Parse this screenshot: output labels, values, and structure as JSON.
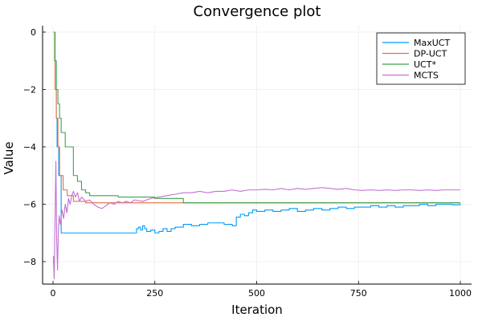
{
  "chart_data": {
    "type": "line",
    "title": "Convergence plot",
    "xlabel": "Iteration",
    "ylabel": "Value",
    "xlim": [
      0,
      1000
    ],
    "ylim": [
      -8.9,
      0.3
    ],
    "xticks": [
      0,
      250,
      500,
      750,
      1000
    ],
    "xtick_labels": [
      "0",
      "250",
      "500",
      "750",
      "1000"
    ],
    "yticks": [
      0,
      -2,
      -4,
      -6,
      -8
    ],
    "ytick_labels": [
      "0",
      "−2",
      "−4",
      "−6",
      "−8"
    ],
    "grid": true,
    "legend_position": "top-right",
    "series": [
      {
        "name": "MaxUCT",
        "color": "#009AFA",
        "step": true,
        "points": [
          [
            1,
            0
          ],
          [
            5,
            -1
          ],
          [
            8,
            -3
          ],
          [
            10,
            -4
          ],
          [
            14,
            -5
          ],
          [
            20,
            -7
          ],
          [
            200,
            -7
          ],
          [
            205,
            -6.85
          ],
          [
            210,
            -6.8
          ],
          [
            215,
            -6.9
          ],
          [
            220,
            -6.75
          ],
          [
            225,
            -6.85
          ],
          [
            230,
            -6.95
          ],
          [
            240,
            -6.9
          ],
          [
            250,
            -7.0
          ],
          [
            260,
            -6.95
          ],
          [
            270,
            -6.85
          ],
          [
            280,
            -6.95
          ],
          [
            290,
            -6.85
          ],
          [
            300,
            -6.8
          ],
          [
            320,
            -6.7
          ],
          [
            340,
            -6.75
          ],
          [
            360,
            -6.7
          ],
          [
            380,
            -6.65
          ],
          [
            400,
            -6.65
          ],
          [
            420,
            -6.7
          ],
          [
            440,
            -6.75
          ],
          [
            450,
            -6.45
          ],
          [
            460,
            -6.35
          ],
          [
            470,
            -6.4
          ],
          [
            480,
            -6.3
          ],
          [
            490,
            -6.2
          ],
          [
            500,
            -6.25
          ],
          [
            520,
            -6.2
          ],
          [
            540,
            -6.25
          ],
          [
            560,
            -6.2
          ],
          [
            580,
            -6.15
          ],
          [
            600,
            -6.25
          ],
          [
            620,
            -6.2
          ],
          [
            640,
            -6.15
          ],
          [
            660,
            -6.2
          ],
          [
            680,
            -6.15
          ],
          [
            700,
            -6.1
          ],
          [
            720,
            -6.15
          ],
          [
            740,
            -6.1
          ],
          [
            760,
            -6.1
          ],
          [
            780,
            -6.05
          ],
          [
            800,
            -6.1
          ],
          [
            820,
            -6.05
          ],
          [
            840,
            -6.1
          ],
          [
            860,
            -6.05
          ],
          [
            880,
            -6.05
          ],
          [
            900,
            -6.0
          ],
          [
            920,
            -6.05
          ],
          [
            940,
            -6.0
          ],
          [
            960,
            -6.0
          ],
          [
            980,
            -6.02
          ],
          [
            1000,
            -5.98
          ]
        ]
      },
      {
        "name": "DP-UCT",
        "color": "#E26F46",
        "step": true,
        "points": [
          [
            1,
            0
          ],
          [
            5,
            -2
          ],
          [
            8,
            -3
          ],
          [
            12,
            -4
          ],
          [
            16,
            -5
          ],
          [
            25,
            -5.5
          ],
          [
            35,
            -5.7
          ],
          [
            50,
            -5.9
          ],
          [
            80,
            -5.95
          ],
          [
            1000,
            -5.95
          ]
        ]
      },
      {
        "name": "UCT*",
        "color": "#3DA44D",
        "step": true,
        "points": [
          [
            1,
            0
          ],
          [
            4,
            -1
          ],
          [
            8,
            -2
          ],
          [
            12,
            -2.5
          ],
          [
            16,
            -3
          ],
          [
            20,
            -3.5
          ],
          [
            30,
            -4
          ],
          [
            50,
            -5
          ],
          [
            60,
            -5.2
          ],
          [
            70,
            -5.5
          ],
          [
            80,
            -5.6
          ],
          [
            90,
            -5.7
          ],
          [
            160,
            -5.75
          ],
          [
            250,
            -5.8
          ],
          [
            320,
            -5.95
          ],
          [
            500,
            -5.95
          ],
          [
            1000,
            -5.95
          ]
        ]
      },
      {
        "name": "MCTS",
        "color": "#C271D2",
        "step": false,
        "points": [
          [
            1,
            -7.8
          ],
          [
            3,
            -8.6
          ],
          [
            5,
            -6.5
          ],
          [
            7,
            -4.5
          ],
          [
            9,
            -7.2
          ],
          [
            11,
            -8.3
          ],
          [
            13,
            -7.0
          ],
          [
            15,
            -6.4
          ],
          [
            18,
            -6.7
          ],
          [
            22,
            -6.2
          ],
          [
            26,
            -6.5
          ],
          [
            30,
            -6.0
          ],
          [
            34,
            -6.3
          ],
          [
            38,
            -5.8
          ],
          [
            42,
            -6.0
          ],
          [
            46,
            -5.7
          ],
          [
            50,
            -5.55
          ],
          [
            55,
            -5.75
          ],
          [
            60,
            -5.6
          ],
          [
            65,
            -5.9
          ],
          [
            70,
            -5.75
          ],
          [
            80,
            -5.9
          ],
          [
            90,
            -5.85
          ],
          [
            100,
            -6.0
          ],
          [
            110,
            -6.1
          ],
          [
            120,
            -6.15
          ],
          [
            130,
            -6.05
          ],
          [
            140,
            -5.95
          ],
          [
            150,
            -6.0
          ],
          [
            160,
            -5.9
          ],
          [
            170,
            -5.95
          ],
          [
            180,
            -5.9
          ],
          [
            190,
            -5.95
          ],
          [
            200,
            -5.85
          ],
          [
            220,
            -5.9
          ],
          [
            240,
            -5.8
          ],
          [
            260,
            -5.75
          ],
          [
            280,
            -5.7
          ],
          [
            300,
            -5.65
          ],
          [
            320,
            -5.6
          ],
          [
            340,
            -5.6
          ],
          [
            360,
            -5.55
          ],
          [
            380,
            -5.6
          ],
          [
            400,
            -5.55
          ],
          [
            420,
            -5.55
          ],
          [
            440,
            -5.5
          ],
          [
            460,
            -5.55
          ],
          [
            480,
            -5.5
          ],
          [
            500,
            -5.5
          ],
          [
            520,
            -5.48
          ],
          [
            540,
            -5.5
          ],
          [
            560,
            -5.45
          ],
          [
            580,
            -5.5
          ],
          [
            600,
            -5.45
          ],
          [
            620,
            -5.48
          ],
          [
            640,
            -5.45
          ],
          [
            660,
            -5.42
          ],
          [
            680,
            -5.45
          ],
          [
            700,
            -5.48
          ],
          [
            720,
            -5.45
          ],
          [
            740,
            -5.5
          ],
          [
            760,
            -5.52
          ],
          [
            780,
            -5.5
          ],
          [
            800,
            -5.52
          ],
          [
            820,
            -5.5
          ],
          [
            840,
            -5.52
          ],
          [
            860,
            -5.5
          ],
          [
            880,
            -5.5
          ],
          [
            900,
            -5.52
          ],
          [
            920,
            -5.5
          ],
          [
            940,
            -5.52
          ],
          [
            960,
            -5.5
          ],
          [
            980,
            -5.5
          ],
          [
            1000,
            -5.5
          ]
        ]
      }
    ]
  }
}
